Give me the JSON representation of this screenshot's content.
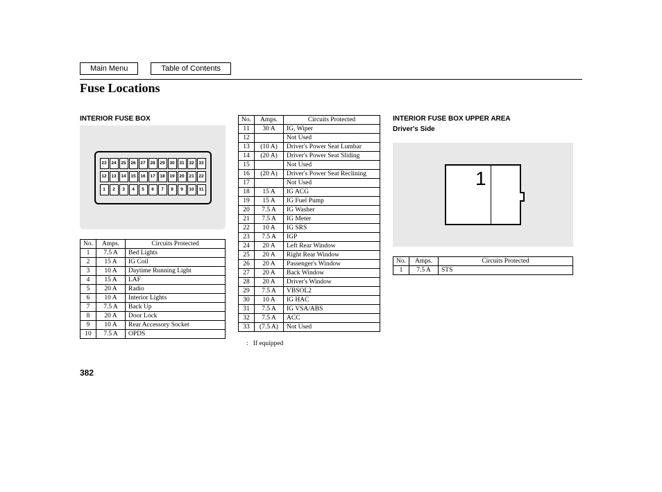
{
  "nav": {
    "main_menu": "Main Menu",
    "toc": "Table of Contents"
  },
  "page_title": "Fuse Locations",
  "page_number": "382",
  "footnote_marker": ":",
  "footnote_text": "If equipped",
  "section1_label": "INTERIOR FUSE BOX",
  "section3_label1": "INTERIOR FUSE BOX UPPER AREA",
  "section3_label2": "Driver's Side",
  "headers": {
    "no": "No.",
    "amps": "Amps.",
    "circuits": "Circuits Protected"
  },
  "fuse_diagram_rows": [
    [
      "23",
      "24",
      "25",
      "26",
      "27",
      "28",
      "29",
      "30",
      "31",
      "32",
      "33"
    ],
    [
      "12",
      "13",
      "14",
      "15",
      "16",
      "17",
      "18",
      "19",
      "20",
      "21",
      "22"
    ],
    [
      "1",
      "2",
      "3",
      "4",
      "5",
      "6",
      "7",
      "8",
      "9",
      "10",
      "11"
    ]
  ],
  "table1": [
    {
      "no": "1",
      "amps": "7.5 A",
      "circ": "Bed Lights"
    },
    {
      "no": "2",
      "amps": "15 A",
      "circ": "IG Coil"
    },
    {
      "no": "3",
      "amps": "10 A",
      "circ": "Daytime Running Light"
    },
    {
      "no": "4",
      "amps": "15 A",
      "circ": "LAF"
    },
    {
      "no": "5",
      "amps": "20 A",
      "circ": "Radio"
    },
    {
      "no": "6",
      "amps": "10 A",
      "circ": "Interior Lights"
    },
    {
      "no": "7",
      "amps": "7.5 A",
      "circ": "Back Up"
    },
    {
      "no": "8",
      "amps": "20 A",
      "circ": "Door Lock"
    },
    {
      "no": "9",
      "amps": "10 A",
      "circ": "Rear Accessory Socket"
    },
    {
      "no": "10",
      "amps": "7.5 A",
      "circ": "OPDS"
    }
  ],
  "table2": [
    {
      "no": "11",
      "amps": "30 A",
      "circ": "IG, Wiper"
    },
    {
      "no": "12",
      "amps": "",
      "circ": "Not Used"
    },
    {
      "no": "13",
      "amps": "(10 A)",
      "circ": "Driver's Power Seat Lumbar"
    },
    {
      "no": "14",
      "amps": "(20 A)",
      "circ": "Driver's Power Seat Sliding"
    },
    {
      "no": "15",
      "amps": "",
      "circ": "Not Used"
    },
    {
      "no": "16",
      "amps": "(20 A)",
      "circ": "Driver's Power Seat Reclining"
    },
    {
      "no": "17",
      "amps": "",
      "circ": "Not Used"
    },
    {
      "no": "18",
      "amps": "15 A",
      "circ": "IG ACG"
    },
    {
      "no": "19",
      "amps": "15 A",
      "circ": "IG Fuel Pump"
    },
    {
      "no": "20",
      "amps": "7.5 A",
      "circ": "IG Washer"
    },
    {
      "no": "21",
      "amps": "7.5 A",
      "circ": "IG Meter"
    },
    {
      "no": "22",
      "amps": "10 A",
      "circ": "IG SRS"
    },
    {
      "no": "23",
      "amps": "7.5 A",
      "circ": "IGP"
    },
    {
      "no": "24",
      "amps": "20 A",
      "circ": "Left Rear Window"
    },
    {
      "no": "25",
      "amps": "20 A",
      "circ": "Right Rear Window"
    },
    {
      "no": "26",
      "amps": "20 A",
      "circ": "Passenger's Window"
    },
    {
      "no": "27",
      "amps": "20 A",
      "circ": "Back Window"
    },
    {
      "no": "28",
      "amps": "20 A",
      "circ": "Driver's Window"
    },
    {
      "no": "29",
      "amps": "7.5 A",
      "circ": "VBSOL2"
    },
    {
      "no": "30",
      "amps": "10 A",
      "circ": "IG HAC"
    },
    {
      "no": "31",
      "amps": "7.5 A",
      "circ": "IG VSA/ABS"
    },
    {
      "no": "32",
      "amps": "7.5 A",
      "circ": "ACC"
    },
    {
      "no": "33",
      "amps": "(7.5 A)",
      "circ": "Not Used"
    }
  ],
  "table3": [
    {
      "no": "1",
      "amps": "7.5 A",
      "circ": "STS"
    }
  ],
  "upper_box_number": "1"
}
